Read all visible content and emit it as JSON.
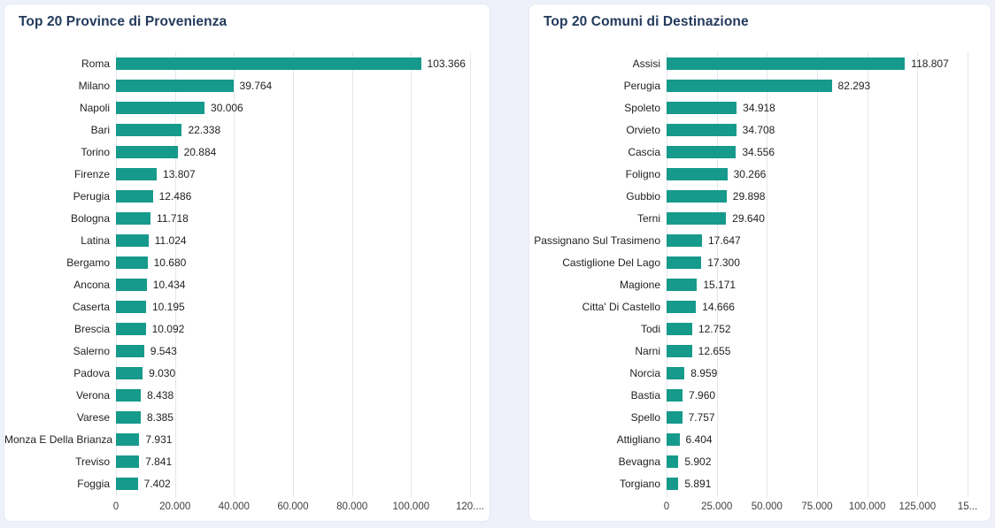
{
  "page": {
    "background": "#eef0fa",
    "card_background": "#ffffff"
  },
  "colors": {
    "bar": "#169a8b",
    "title": "#233a5c",
    "gridline": "#e3e6ee"
  },
  "chart_data": [
    {
      "type": "bar",
      "orientation": "horizontal",
      "title": "Top 20 Province di Provenienza",
      "categories": [
        "Roma",
        "Milano",
        "Napoli",
        "Bari",
        "Torino",
        "Firenze",
        "Perugia",
        "Bologna",
        "Latina",
        "Bergamo",
        "Ancona",
        "Caserta",
        "Brescia",
        "Salerno",
        "Padova",
        "Verona",
        "Varese",
        "Monza E Della Brianza",
        "Treviso",
        "Foggia"
      ],
      "values": [
        103366,
        39764,
        30006,
        22338,
        20884,
        13807,
        12486,
        11718,
        11024,
        10680,
        10434,
        10195,
        10092,
        9543,
        9030,
        8438,
        8385,
        7931,
        7841,
        7402
      ],
      "value_labels": [
        "103.366",
        "39.764",
        "30.006",
        "22.338",
        "20.884",
        "13.807",
        "12.486",
        "11.718",
        "11.024",
        "10.680",
        "10.434",
        "10.195",
        "10.092",
        "9.543",
        "9.030",
        "8.438",
        "8.385",
        "7.931",
        "7.841",
        "7.402"
      ],
      "x_tick_labels": [
        "0",
        "20.000",
        "40.000",
        "60.000",
        "80.000",
        "100.000",
        "120...."
      ],
      "xlim": [
        0,
        120000
      ],
      "grid": "vertical",
      "legend": "none"
    },
    {
      "type": "bar",
      "orientation": "horizontal",
      "title": "Top 20 Comuni di Destinazione",
      "categories": [
        "Assisi",
        "Perugia",
        "Spoleto",
        "Orvieto",
        "Cascia",
        "Foligno",
        "Gubbio",
        "Terni",
        "Passignano Sul Trasimeno",
        "Castiglione Del Lago",
        "Magione",
        "Citta' Di Castello",
        "Todi",
        "Narni",
        "Norcia",
        "Bastia",
        "Spello",
        "Attigliano",
        "Bevagna",
        "Torgiano"
      ],
      "values": [
        118807,
        82293,
        34918,
        34708,
        34556,
        30266,
        29898,
        29640,
        17647,
        17300,
        15171,
        14666,
        12752,
        12655,
        8959,
        7960,
        7757,
        6404,
        5902,
        5891
      ],
      "value_labels": [
        "118.807",
        "82.293",
        "34.918",
        "34.708",
        "34.556",
        "30.266",
        "29.898",
        "29.640",
        "17.647",
        "17.300",
        "15.171",
        "14.666",
        "12.752",
        "12.655",
        "8.959",
        "7.960",
        "7.757",
        "6.404",
        "5.902",
        "5.891"
      ],
      "x_tick_labels": [
        "0",
        "25.000",
        "50.000",
        "75.000",
        "100.000",
        "125.000",
        "15..."
      ],
      "xlim": [
        0,
        150000
      ],
      "grid": "vertical",
      "legend": "none"
    }
  ]
}
